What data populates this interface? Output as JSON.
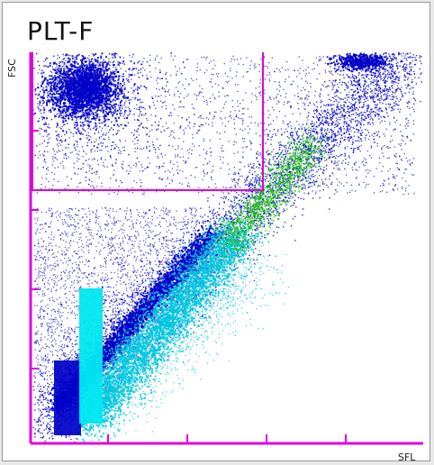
{
  "title": "PLT-F",
  "axes": {
    "y_label": "FSC",
    "x_label": "SFL"
  },
  "colors": {
    "axis": "#e000e0",
    "population_main": "#0000c8",
    "population_platelet": "#00c8e0",
    "population_ipf": "#19c800"
  }
}
